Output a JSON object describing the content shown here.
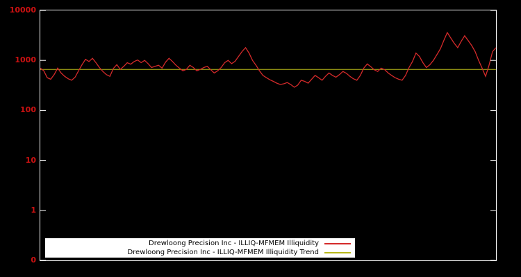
{
  "chart": {
    "background_color": "#000000",
    "frame_color": "#ffffff",
    "tick_label_color": "#cc1111",
    "legend_background": "#ffffff",
    "legend_text_color": "#000000"
  },
  "chart_data": {
    "type": "line",
    "title": "",
    "xlabel": "",
    "ylabel": "",
    "yscale": "log",
    "ylim": [
      0.1,
      10000
    ],
    "grid": false,
    "legend_position": "bottom-center",
    "yticks": [
      {
        "label": "10000",
        "value": 10000
      },
      {
        "label": "1000",
        "value": 1000
      },
      {
        "label": "100",
        "value": 100
      },
      {
        "label": "10",
        "value": 10
      },
      {
        "label": "1",
        "value": 1
      },
      {
        "label": "0",
        "value": 0.1
      }
    ],
    "series": [
      {
        "name": "Drewloong Precision Inc - ILLIQ-MFMEM Illiquidity",
        "color": "#d42a2a",
        "values": [
          700,
          620,
          450,
          420,
          520,
          700,
          560,
          480,
          430,
          400,
          460,
          620,
          820,
          1050,
          950,
          1100,
          900,
          720,
          600,
          520,
          480,
          690,
          820,
          660,
          760,
          900,
          840,
          950,
          1020,
          900,
          1000,
          860,
          720,
          760,
          800,
          700,
          920,
          1100,
          950,
          800,
          700,
          620,
          660,
          800,
          720,
          620,
          660,
          720,
          760,
          650,
          560,
          620,
          720,
          900,
          1000,
          860,
          960,
          1200,
          1500,
          1800,
          1400,
          1000,
          800,
          620,
          500,
          450,
          410,
          380,
          350,
          330,
          340,
          360,
          330,
          290,
          320,
          400,
          380,
          350,
          420,
          500,
          450,
          400,
          480,
          560,
          500,
          460,
          520,
          600,
          550,
          480,
          430,
          400,
          500,
          700,
          850,
          750,
          650,
          600,
          700,
          650,
          560,
          500,
          450,
          420,
          400,
          500,
          720,
          950,
          1400,
          1200,
          900,
          720,
          820,
          1000,
          1300,
          1700,
          2500,
          3600,
          2800,
          2200,
          1800,
          2400,
          3100,
          2500,
          2000,
          1500,
          1000,
          700,
          480,
          800,
          1500,
          1800
        ]
      },
      {
        "name": "Drewloong Precision Inc - ILLIQ-MFMEM Illiquidity Trend",
        "color": "#b8b818",
        "value": 660
      }
    ]
  }
}
